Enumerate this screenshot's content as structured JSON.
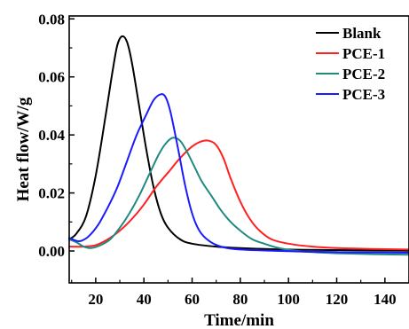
{
  "chart_data": {
    "type": "line",
    "title": "",
    "xlabel": "Time/min",
    "ylabel": "Heat flow/W/g",
    "xlim": [
      9,
      150
    ],
    "ylim": [
      -0.011,
      0.081
    ],
    "x_ticks": [
      {
        "value": 20,
        "label": "20"
      },
      {
        "value": 40,
        "label": "40"
      },
      {
        "value": 60,
        "label": "60"
      },
      {
        "value": 80,
        "label": "80"
      },
      {
        "value": 100,
        "label": "100"
      },
      {
        "value": 120,
        "label": "120"
      },
      {
        "value": 140,
        "label": "140"
      }
    ],
    "y_ticks": [
      {
        "value": 0.0,
        "label": "0.00"
      },
      {
        "value": 0.02,
        "label": "0.02"
      },
      {
        "value": 0.04,
        "label": "0.04"
      },
      {
        "value": 0.06,
        "label": "0.06"
      },
      {
        "value": 0.08,
        "label": "0.08"
      }
    ],
    "grid": false,
    "legend_position": "top-right",
    "series": [
      {
        "name": "Blank",
        "color": "#000000",
        "points": [
          [
            9,
            0.004
          ],
          [
            12,
            0.006
          ],
          [
            16,
            0.012
          ],
          [
            20,
            0.026
          ],
          [
            24,
            0.046
          ],
          [
            27,
            0.062
          ],
          [
            29,
            0.071
          ],
          [
            31,
            0.074
          ],
          [
            33,
            0.072
          ],
          [
            35,
            0.065
          ],
          [
            38,
            0.05
          ],
          [
            41,
            0.035
          ],
          [
            44,
            0.022
          ],
          [
            47,
            0.013
          ],
          [
            50,
            0.008
          ],
          [
            55,
            0.004
          ],
          [
            60,
            0.0025
          ],
          [
            70,
            0.0015
          ],
          [
            80,
            0.001
          ],
          [
            100,
            0.0005
          ],
          [
            120,
            0.0003
          ],
          [
            150,
            0.0001
          ]
        ]
      },
      {
        "name": "PCE-1",
        "color": "#ff2020",
        "points": [
          [
            9,
            0.0015
          ],
          [
            15,
            0.0015
          ],
          [
            20,
            0.002
          ],
          [
            25,
            0.004
          ],
          [
            30,
            0.007
          ],
          [
            35,
            0.011
          ],
          [
            40,
            0.016
          ],
          [
            45,
            0.022
          ],
          [
            50,
            0.027
          ],
          [
            55,
            0.032
          ],
          [
            60,
            0.036
          ],
          [
            64,
            0.0378
          ],
          [
            67,
            0.038
          ],
          [
            70,
            0.0365
          ],
          [
            73,
            0.032
          ],
          [
            76,
            0.025
          ],
          [
            80,
            0.017
          ],
          [
            84,
            0.011
          ],
          [
            88,
            0.007
          ],
          [
            93,
            0.004
          ],
          [
            100,
            0.0025
          ],
          [
            110,
            0.0015
          ],
          [
            120,
            0.001
          ],
          [
            135,
            0.0007
          ],
          [
            150,
            0.0005
          ]
        ]
      },
      {
        "name": "PCE-2",
        "color": "#1f8a80",
        "points": [
          [
            9,
            0.004
          ],
          [
            12,
            0.003
          ],
          [
            15,
            0.0015
          ],
          [
            18,
            0.001
          ],
          [
            22,
            0.002
          ],
          [
            26,
            0.004
          ],
          [
            30,
            0.008
          ],
          [
            34,
            0.013
          ],
          [
            38,
            0.019
          ],
          [
            42,
            0.026
          ],
          [
            46,
            0.033
          ],
          [
            49,
            0.037
          ],
          [
            52,
            0.039
          ],
          [
            55,
            0.038
          ],
          [
            58,
            0.034
          ],
          [
            61,
            0.029
          ],
          [
            64,
            0.024
          ],
          [
            68,
            0.019
          ],
          [
            72,
            0.014
          ],
          [
            76,
            0.01
          ],
          [
            80,
            0.007
          ],
          [
            85,
            0.004
          ],
          [
            90,
            0.0025
          ],
          [
            95,
            0.0012
          ],
          [
            100,
            0.0004
          ],
          [
            110,
            -0.0004
          ],
          [
            120,
            -0.0008
          ],
          [
            135,
            -0.0011
          ],
          [
            150,
            -0.0013
          ]
        ]
      },
      {
        "name": "PCE-3",
        "color": "#1a1aff",
        "points": [
          [
            9,
            0.0045
          ],
          [
            12,
            0.0035
          ],
          [
            14,
            0.0035
          ],
          [
            17,
            0.005
          ],
          [
            21,
            0.009
          ],
          [
            25,
            0.015
          ],
          [
            29,
            0.022
          ],
          [
            33,
            0.031
          ],
          [
            37,
            0.04
          ],
          [
            41,
            0.047
          ],
          [
            44,
            0.052
          ],
          [
            47,
            0.054
          ],
          [
            49,
            0.053
          ],
          [
            51,
            0.048
          ],
          [
            54,
            0.036
          ],
          [
            57,
            0.023
          ],
          [
            60,
            0.013
          ],
          [
            63,
            0.007
          ],
          [
            67,
            0.0035
          ],
          [
            72,
            0.0015
          ],
          [
            80,
            0.0005
          ],
          [
            100,
            -0.0001
          ],
          [
            120,
            -0.0004
          ],
          [
            150,
            -0.0006
          ]
        ]
      }
    ]
  }
}
